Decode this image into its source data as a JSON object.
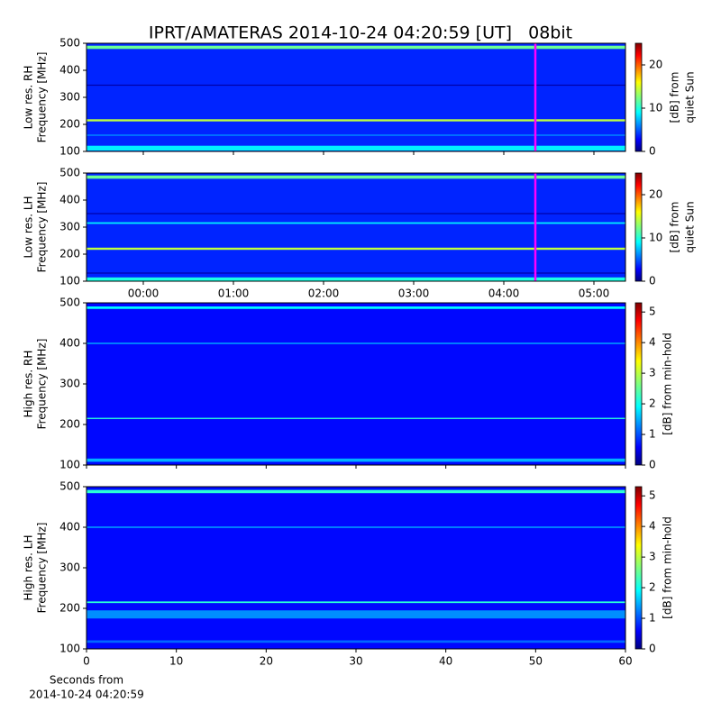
{
  "chart_data": [
    {
      "type": "heatmap",
      "title": "IPRT/AMATERAS 2014-10-24 04:20:59 [UT]   08bit",
      "ylabel": [
        "Low res. RH",
        "Frequency [MHz]"
      ],
      "xlim": [
        -0.63,
        5.35
      ],
      "xticks": [
        0,
        1,
        2,
        3,
        4,
        5
      ],
      "show_xtick_labels": false,
      "ylim": [
        100,
        500
      ],
      "yticks": [
        100,
        200,
        300,
        400,
        500
      ],
      "zlim": [
        0,
        25
      ],
      "zticks": [
        0,
        10,
        20
      ],
      "colorbar_label": [
        "[dB] from",
        "quiet Sun"
      ],
      "colormap": "jet",
      "background": 4,
      "bands": [
        {
          "freq": 485,
          "width": 12,
          "level": 12
        },
        {
          "freq": 215,
          "width": 8,
          "level": 14
        },
        {
          "freq": 345,
          "width": 4,
          "level": 1
        },
        {
          "freq": 160,
          "width": 6,
          "level": 6
        },
        {
          "freq": 112,
          "width": 18,
          "level": 9
        }
      ],
      "cursor": 4.35,
      "cursor_color": "#ff00ff"
    },
    {
      "type": "heatmap",
      "ylabel": [
        "Low res. LH",
        "Frequency [MHz]"
      ],
      "xlim": [
        -0.63,
        5.35
      ],
      "xticks": [
        {
          "value": 0,
          "label": "00:00"
        },
        {
          "value": 1,
          "label": "01:00"
        },
        {
          "value": 2,
          "label": "02:00"
        },
        {
          "value": 3,
          "label": "03:00"
        },
        {
          "value": 4,
          "label": "04:00"
        },
        {
          "value": 5,
          "label": "05:00"
        }
      ],
      "ylim": [
        100,
        500
      ],
      "yticks": [
        100,
        200,
        300,
        400,
        500
      ],
      "zlim": [
        0,
        25
      ],
      "zticks": [
        0,
        10,
        20
      ],
      "colorbar_label": [
        "[dB] from",
        "quiet Sun"
      ],
      "colormap": "jet",
      "background": 4,
      "bands": [
        {
          "freq": 485,
          "width": 12,
          "level": 12
        },
        {
          "freq": 220,
          "width": 8,
          "level": 14
        },
        {
          "freq": 315,
          "width": 6,
          "level": 9
        },
        {
          "freq": 350,
          "width": 4,
          "level": 1
        },
        {
          "freq": 130,
          "width": 4,
          "level": 1
        },
        {
          "freq": 107,
          "width": 14,
          "level": 10
        }
      ],
      "cursor": 4.35,
      "cursor_color": "#ff00ff"
    },
    {
      "type": "heatmap",
      "ylabel": [
        "High res. RH",
        "Frequency [MHz]"
      ],
      "xlim": [
        0,
        60
      ],
      "xticks": [
        0,
        10,
        20,
        30,
        40,
        50,
        60
      ],
      "show_xtick_labels": false,
      "ylim": [
        100,
        500
      ],
      "yticks": [
        100,
        200,
        300,
        400,
        500
      ],
      "zlim": [
        0,
        5.3
      ],
      "zticks": [
        0,
        1,
        2,
        3,
        4,
        5
      ],
      "colorbar_label": [
        "[dB] from min-hold"
      ],
      "colormap": "jet",
      "background": 0.7,
      "bands": [
        {
          "freq": 488,
          "width": 6,
          "level": 2
        },
        {
          "freq": 400,
          "width": 3,
          "level": 1.6
        },
        {
          "freq": 215,
          "width": 3,
          "level": 2.2
        },
        {
          "freq": 112,
          "width": 8,
          "level": 1.6
        }
      ]
    },
    {
      "type": "heatmap",
      "ylabel": [
        "High res. LH",
        "Frequency [MHz]"
      ],
      "xlim": [
        0,
        60
      ],
      "xticks": [
        0,
        10,
        20,
        30,
        40,
        50,
        60
      ],
      "xlabel": [
        "Seconds from",
        "2014-10-24 04:20:59"
      ],
      "ylim": [
        100,
        500
      ],
      "yticks": [
        100,
        200,
        300,
        400,
        500
      ],
      "zlim": [
        0,
        5.3
      ],
      "zticks": [
        0,
        1,
        2,
        3,
        4,
        5
      ],
      "colorbar_label": [
        "[dB] from min-hold"
      ],
      "colormap": "jet",
      "background": 0.7,
      "bands": [
        {
          "freq": 488,
          "width": 8,
          "level": 2.2
        },
        {
          "freq": 400,
          "width": 3,
          "level": 1.6
        },
        {
          "freq": 215,
          "width": 4,
          "level": 2.2
        },
        {
          "freq": 185,
          "width": 20,
          "level": 1.4
        },
        {
          "freq": 118,
          "width": 6,
          "level": 1.2
        }
      ]
    }
  ]
}
